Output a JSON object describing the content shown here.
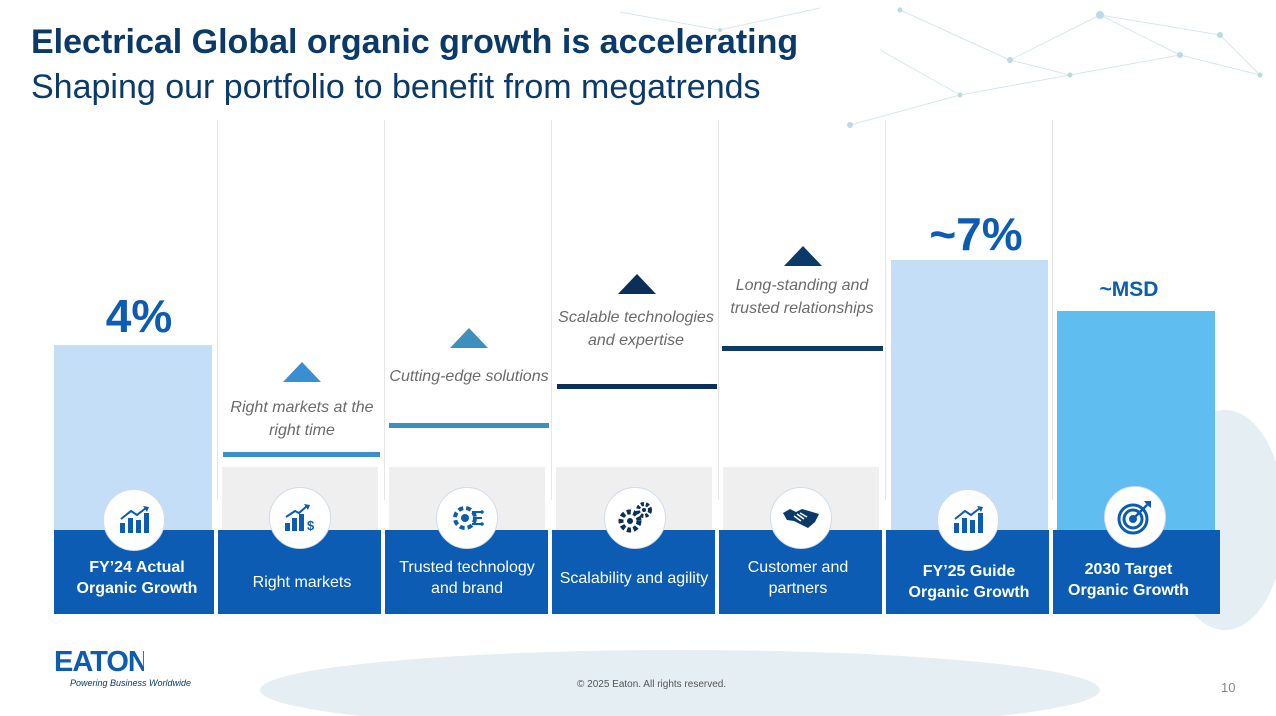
{
  "title": "Electrical Global organic growth is accelerating",
  "subtitle": "Shaping our portfolio to benefit from megatrends",
  "columns": [
    {
      "label": "FY’24 Actual Organic Growth",
      "value": "4%",
      "icon": "bar-chart-arrow-icon"
    },
    {
      "label": "Right markets",
      "step_text": "Right markets at the right time",
      "icon": "chart-dollar-icon"
    },
    {
      "label": "Trusted technology and brand",
      "step_text": "Cutting-edge solutions",
      "icon": "circuit-gear-icon"
    },
    {
      "label": "Scalability and agility",
      "step_text": "Scalable technologies and expertise",
      "icon": "gears-icon"
    },
    {
      "label": "Customer and partners",
      "step_text": "Long-standing and trusted relationships",
      "icon": "handshake-icon"
    },
    {
      "label": "FY’25 Guide Organic Growth",
      "value": "~7%",
      "icon": "bar-chart-arrow-icon"
    },
    {
      "label": "2030 Target Organic Growth",
      "value": "~MSD",
      "icon": "target-icon"
    }
  ],
  "colors": {
    "title": "#0b3a69",
    "band": "#0b5cb2",
    "bar_light": "#c4def8",
    "bar_target": "#5fbdf0",
    "step1": "#3a8fd2",
    "step2": "#3f8fbd",
    "step3": "#0b2f5a",
    "step4": "#0b3a69"
  },
  "footer": {
    "logo": "EATON",
    "tagline": "Powering Business Worldwide",
    "copyright": "© 2025 Eaton. All rights reserved.",
    "page_number": "10"
  }
}
